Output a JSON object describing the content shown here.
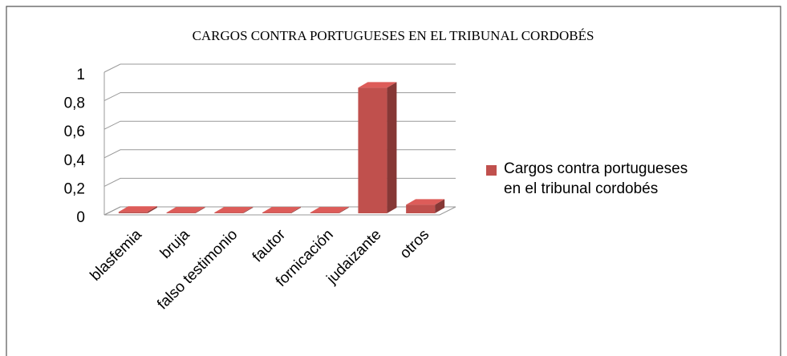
{
  "chart_data": {
    "type": "bar3d",
    "title": "CARGOS CONTRA PORTUGUESES EN EL TRIBUNAL CORDOBÉS",
    "categories": [
      "blasfemia",
      "bruja",
      "falso testimonio",
      "fautor",
      "fornicación",
      "judaizante",
      "otros"
    ],
    "series": [
      {
        "name": "Cargos contra portugueses en el tribunal cordobés",
        "color": "#c0504d",
        "values": [
          0.01,
          0.005,
          0.005,
          0.005,
          0.005,
          0.88,
          0.06
        ]
      }
    ],
    "ylim": [
      0,
      1
    ],
    "yticks": [
      0,
      {
        "value": 0.2,
        "label": "0,2"
      },
      {
        "value": 0.4,
        "label": "0,4"
      },
      {
        "value": 0.6,
        "label": "0,6"
      },
      {
        "value": 0.8,
        "label": "0,8"
      },
      1
    ],
    "grid": true,
    "legend": "right"
  }
}
